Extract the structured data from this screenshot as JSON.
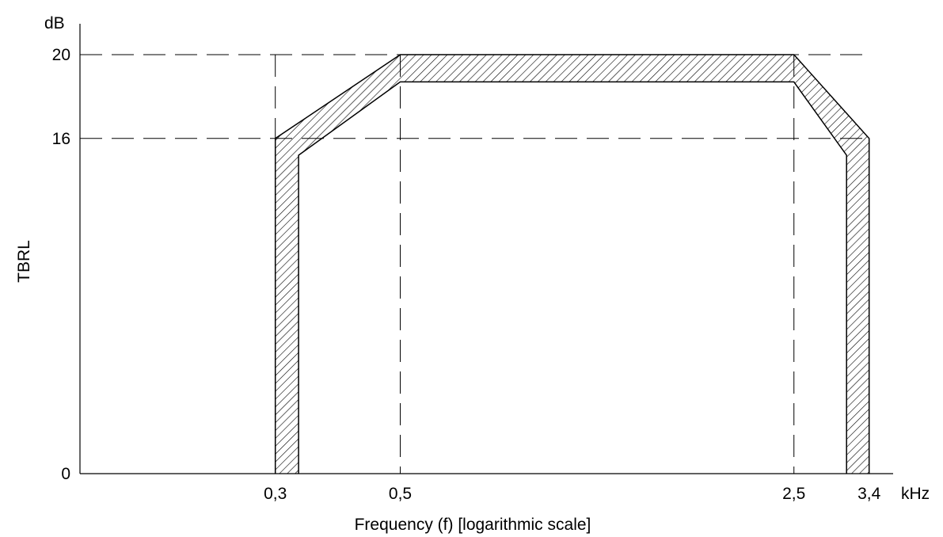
{
  "chart_data": {
    "type": "area",
    "title": "",
    "xlabel": "Frequency (f) [logarithmic scale]",
    "ylabel": "TBRL",
    "x_unit": "kHz",
    "y_unit": "dB",
    "x_scale": "log",
    "xlim": [
      0.135,
      3.75
    ],
    "ylim": [
      0,
      20
    ],
    "x_ticks": [
      {
        "value": 0.3,
        "label": "0,3"
      },
      {
        "value": 0.5,
        "label": "0,5"
      },
      {
        "value": 2.5,
        "label": "2,5"
      },
      {
        "value": 3.4,
        "label": "3,4"
      }
    ],
    "y_ticks": [
      {
        "value": 0,
        "label": "0"
      },
      {
        "value": 16,
        "label": "16"
      },
      {
        "value": 20,
        "label": "20"
      }
    ],
    "grid": false,
    "guide_lines": {
      "horizontal": [
        16,
        20
      ],
      "vertical": [
        0.3,
        0.5,
        2.5
      ]
    },
    "mask": {
      "outer": [
        [
          0.3,
          0
        ],
        [
          0.3,
          16
        ],
        [
          0.5,
          20
        ],
        [
          2.5,
          20
        ],
        [
          3.4,
          16
        ],
        [
          3.4,
          0
        ]
      ],
      "inner": [
        [
          0.33,
          0
        ],
        [
          0.33,
          15.2
        ],
        [
          0.5,
          18.7
        ],
        [
          2.5,
          18.7
        ],
        [
          3.1,
          15.2
        ],
        [
          3.1,
          0
        ]
      ],
      "fill": "hatched",
      "color": "#000000"
    }
  }
}
